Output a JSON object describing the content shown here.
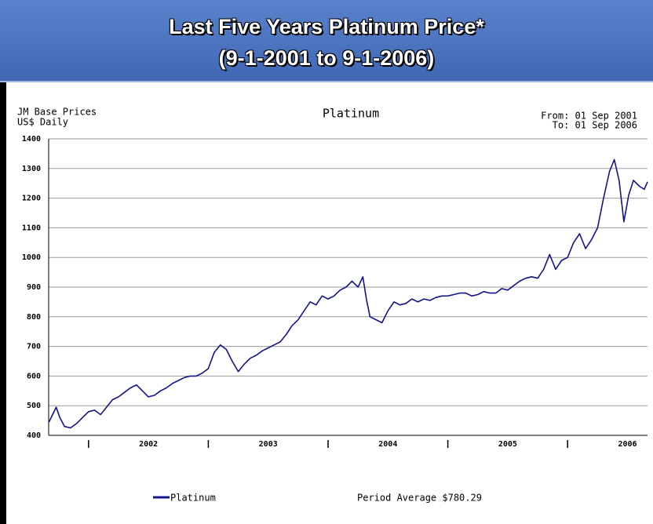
{
  "header": {
    "title": [
      "Last Five Years Platinum Price*",
      "(9-1-2001 to 9-1-2006)"
    ]
  },
  "chart_data": {
    "type": "line",
    "title": "Platinum",
    "source": [
      "JM Base Prices",
      "US$ Daily"
    ],
    "range": [
      "From: 01 Sep 2001",
      "To: 01 Sep 2006"
    ],
    "x": [
      2001.67,
      2001.7,
      2001.73,
      2001.76,
      2001.8,
      2001.85,
      2001.9,
      2001.95,
      2002.0,
      2002.05,
      2002.1,
      2002.15,
      2002.2,
      2002.25,
      2002.3,
      2002.35,
      2002.4,
      2002.45,
      2002.5,
      2002.55,
      2002.6,
      2002.65,
      2002.7,
      2002.75,
      2002.8,
      2002.85,
      2002.9,
      2002.95,
      2003.0,
      2003.05,
      2003.1,
      2003.15,
      2003.2,
      2003.25,
      2003.3,
      2003.35,
      2003.4,
      2003.45,
      2003.5,
      2003.55,
      2003.6,
      2003.65,
      2003.7,
      2003.75,
      2003.8,
      2003.85,
      2003.9,
      2003.95,
      2004.0,
      2004.05,
      2004.1,
      2004.15,
      2004.2,
      2004.25,
      2004.29,
      2004.32,
      2004.35,
      2004.4,
      2004.45,
      2004.5,
      2004.55,
      2004.6,
      2004.65,
      2004.7,
      2004.75,
      2004.8,
      2004.85,
      2004.9,
      2004.95,
      2005.0,
      2005.05,
      2005.1,
      2005.15,
      2005.2,
      2005.25,
      2005.3,
      2005.35,
      2005.4,
      2005.45,
      2005.5,
      2005.55,
      2005.6,
      2005.65,
      2005.7,
      2005.75,
      2005.8,
      2005.85,
      2005.9,
      2005.95,
      2006.0,
      2006.05,
      2006.1,
      2006.15,
      2006.2,
      2006.25,
      2006.3,
      2006.35,
      2006.39,
      2006.43,
      2006.47,
      2006.51,
      2006.55,
      2006.6,
      2006.64,
      2006.667
    ],
    "series": [
      {
        "name": "Platinum",
        "color": "#14148c",
        "values": [
          445,
          470,
          495,
          460,
          430,
          425,
          440,
          460,
          480,
          485,
          470,
          495,
          520,
          530,
          545,
          560,
          570,
          550,
          530,
          535,
          550,
          560,
          575,
          585,
          595,
          600,
          600,
          610,
          625,
          680,
          705,
          690,
          650,
          615,
          640,
          660,
          670,
          685,
          695,
          705,
          715,
          740,
          770,
          790,
          820,
          850,
          840,
          870,
          860,
          870,
          890,
          900,
          920,
          900,
          935,
          860,
          800,
          790,
          780,
          820,
          850,
          840,
          845,
          860,
          850,
          860,
          855,
          865,
          870,
          870,
          875,
          880,
          880,
          870,
          875,
          885,
          880,
          880,
          895,
          890,
          905,
          920,
          930,
          935,
          930,
          960,
          1010,
          960,
          990,
          1000,
          1050,
          1080,
          1030,
          1060,
          1100,
          1200,
          1290,
          1330,
          1260,
          1120,
          1210,
          1260,
          1240,
          1230,
          1255
        ]
      }
    ],
    "xlim": [
      2001.667,
      2006.667
    ],
    "xticks": [
      {
        "value": 2002.5,
        "label": "2002"
      },
      {
        "value": 2003.5,
        "label": "2003"
      },
      {
        "value": 2004.5,
        "label": "2004"
      },
      {
        "value": 2005.5,
        "label": "2005"
      },
      {
        "value": 2006.5,
        "label": "2006"
      }
    ],
    "year_starts": [
      2002,
      2003,
      2004,
      2005,
      2006
    ],
    "ylim": [
      400,
      1400
    ],
    "yticks": [
      400,
      500,
      600,
      700,
      800,
      900,
      1000,
      1100,
      1200,
      1300,
      1400
    ],
    "grid": true,
    "annotation": "Period Average $780.29"
  }
}
